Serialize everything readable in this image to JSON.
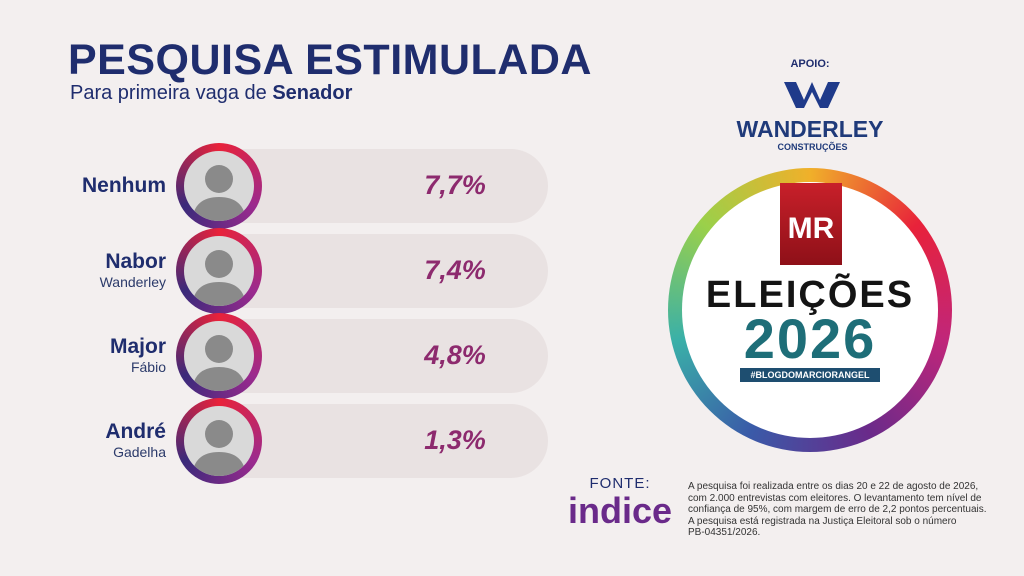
{
  "header": {
    "title": "PESQUISA ESTIMULADA",
    "subtitle": "Para primeira vaga de",
    "subtitle_bold": "Senador"
  },
  "candidates": [
    {
      "first": "Nenhum",
      "result": "7,7%"
    },
    {
      "first": "Nabor",
      "last": "Wanderley",
      "result": "7,4%"
    },
    {
      "first": "Major",
      "last": "Fábio",
      "result": "4,8%"
    },
    {
      "first": "André",
      "last": "Gadelha",
      "result": "1,3%"
    }
  ],
  "sponsor": {
    "label": "APOIO:",
    "name": "WANDERLEY",
    "sub": "CONSTRUÇÕES"
  },
  "logo": {
    "initials": "MR",
    "line1": "ELEIÇÕES",
    "line2": "2026",
    "hashtag": "#BLOGDOMARCIORANGEL"
  },
  "source": {
    "label": "FONTE:",
    "name": "indice"
  },
  "note": [
    "A pesquisa foi realizada entre os dias 20 e 22 de agosto de 2026,",
    "com 2.000 entrevistas com eleitores. O levantamento tem nível de",
    "confiança de 95%, com margem de erro de 2,2 pontos percentuais.",
    "A pesquisa está registrada na Justiça Eleitoral sob o número",
    "PB-04351/2026."
  ]
}
